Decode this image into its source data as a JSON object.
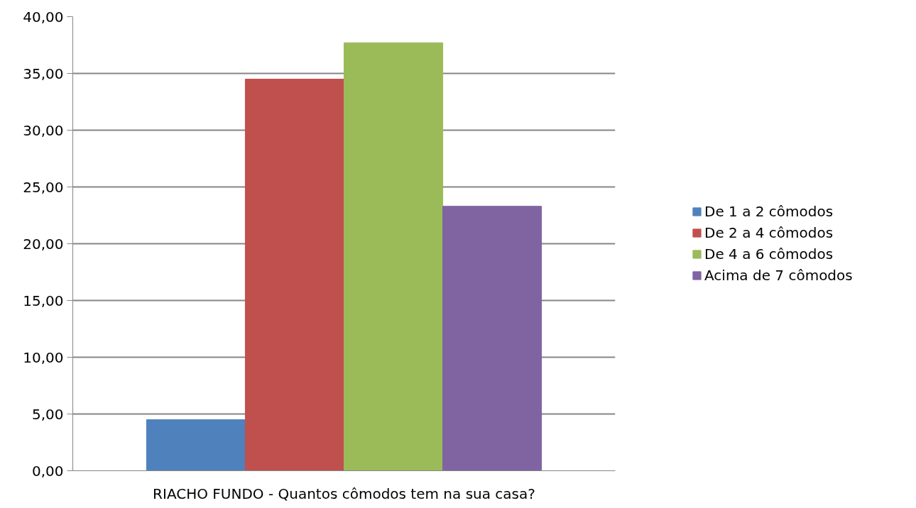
{
  "chart_data": {
    "type": "bar",
    "categories": [
      "RIACHO FUNDO - Quantos cômodos tem na sua casa?"
    ],
    "series": [
      {
        "name": "De 1 a 2 cômodos",
        "color": "#4f81bd",
        "values": [
          4.5
        ]
      },
      {
        "name": "De 2 a 4 cômodos",
        "color": "#c0504d",
        "values": [
          34.5
        ]
      },
      {
        "name": "De 4 a 6 cômodos",
        "color": "#9bbb59",
        "values": [
          37.7
        ]
      },
      {
        "name": "Acima de 7 cômodos",
        "color": "#8064a2",
        "values": [
          23.3
        ]
      }
    ],
    "ylim": [
      0,
      40
    ],
    "yticks": [
      {
        "value": 0,
        "label": "0,00"
      },
      {
        "value": 5,
        "label": "5,00"
      },
      {
        "value": 10,
        "label": "10,00"
      },
      {
        "value": 15,
        "label": "15,00"
      },
      {
        "value": 20,
        "label": "20,00"
      },
      {
        "value": 25,
        "label": "25,00"
      },
      {
        "value": 30,
        "label": "30,00"
      },
      {
        "value": 35,
        "label": "35,00"
      },
      {
        "value": 40,
        "label": "40,00"
      }
    ],
    "grid": "y",
    "legend": "right"
  }
}
